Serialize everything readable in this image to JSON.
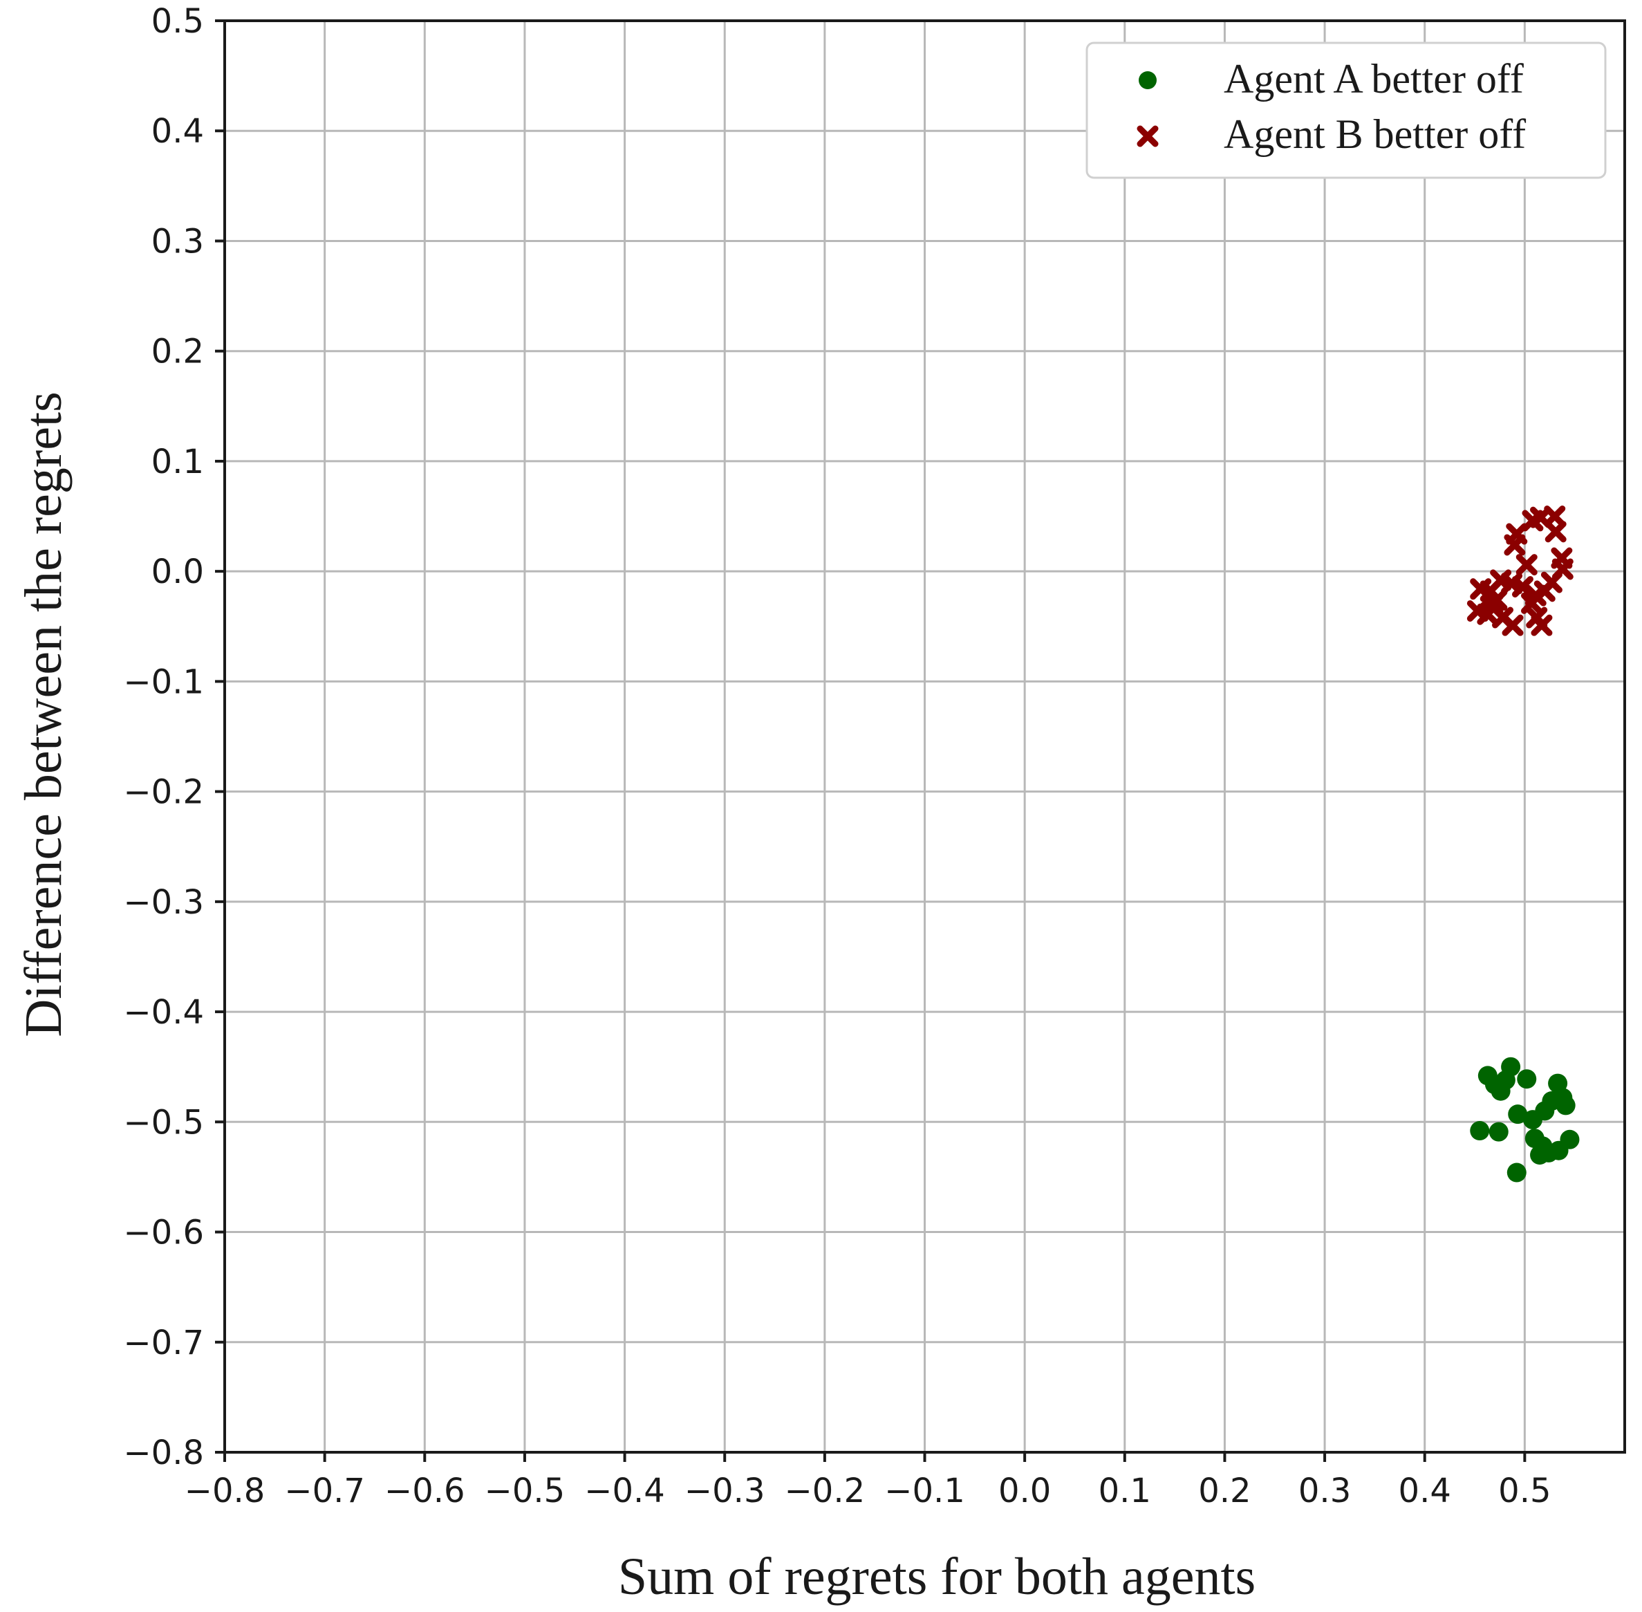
{
  "chart_data": {
    "type": "scatter",
    "title": "",
    "xlabel": "Sum of regrets for both agents",
    "ylabel": "Difference between the regrets",
    "xlim": [
      -0.8,
      0.6
    ],
    "ylim": [
      -0.8,
      0.5
    ],
    "grid": true,
    "legend_position": "top-right",
    "x_ticks": [
      "−0.8",
      "−0.7",
      "−0.6",
      "−0.5",
      "−0.4",
      "−0.3",
      "−0.2",
      "−0.1",
      "0.0",
      "0.1",
      "0.2",
      "0.3",
      "0.4",
      "0.5"
    ],
    "y_ticks": [
      "0.5",
      "0.4",
      "0.3",
      "0.2",
      "0.1",
      "0.0",
      "−0.1",
      "−0.2",
      "−0.3",
      "−0.4",
      "−0.5",
      "−0.6",
      "−0.7",
      "−0.8"
    ],
    "series": [
      {
        "name": "Agent A better off",
        "marker": "circle",
        "color": "#006400",
        "points": [
          [
            0.463,
            -0.458
          ],
          [
            0.47,
            -0.466
          ],
          [
            0.476,
            -0.472
          ],
          [
            0.486,
            -0.45
          ],
          [
            0.481,
            -0.462
          ],
          [
            0.502,
            -0.461
          ],
          [
            0.533,
            -0.465
          ],
          [
            0.538,
            -0.478
          ],
          [
            0.527,
            -0.481
          ],
          [
            0.52,
            -0.49
          ],
          [
            0.541,
            -0.485
          ],
          [
            0.493,
            -0.493
          ],
          [
            0.455,
            -0.508
          ],
          [
            0.474,
            -0.509
          ],
          [
            0.51,
            -0.515
          ],
          [
            0.518,
            -0.522
          ],
          [
            0.524,
            -0.528
          ],
          [
            0.534,
            -0.526
          ],
          [
            0.545,
            -0.516
          ],
          [
            0.492,
            -0.546
          ],
          [
            0.515,
            -0.53
          ],
          [
            0.508,
            -0.498
          ]
        ]
      },
      {
        "name": "Agent B better off",
        "marker": "x",
        "color": "#8b0000",
        "points": [
          [
            0.492,
            0.034
          ],
          [
            0.49,
            0.024
          ],
          [
            0.508,
            0.046
          ],
          [
            0.516,
            0.049
          ],
          [
            0.53,
            0.05
          ],
          [
            0.531,
            0.036
          ],
          [
            0.537,
            0.012
          ],
          [
            0.538,
            0.002
          ],
          [
            0.527,
            -0.01
          ],
          [
            0.52,
            -0.018
          ],
          [
            0.511,
            -0.022
          ],
          [
            0.498,
            -0.014
          ],
          [
            0.487,
            -0.011
          ],
          [
            0.476,
            -0.008
          ],
          [
            0.466,
            -0.018
          ],
          [
            0.456,
            -0.016
          ],
          [
            0.468,
            -0.03
          ],
          [
            0.463,
            -0.039
          ],
          [
            0.453,
            -0.036
          ],
          [
            0.478,
            -0.042
          ],
          [
            0.488,
            -0.049
          ],
          [
            0.507,
            -0.029
          ],
          [
            0.512,
            -0.042
          ],
          [
            0.517,
            -0.049
          ],
          [
            0.472,
            -0.026
          ],
          [
            0.502,
            0.006
          ]
        ]
      }
    ]
  }
}
